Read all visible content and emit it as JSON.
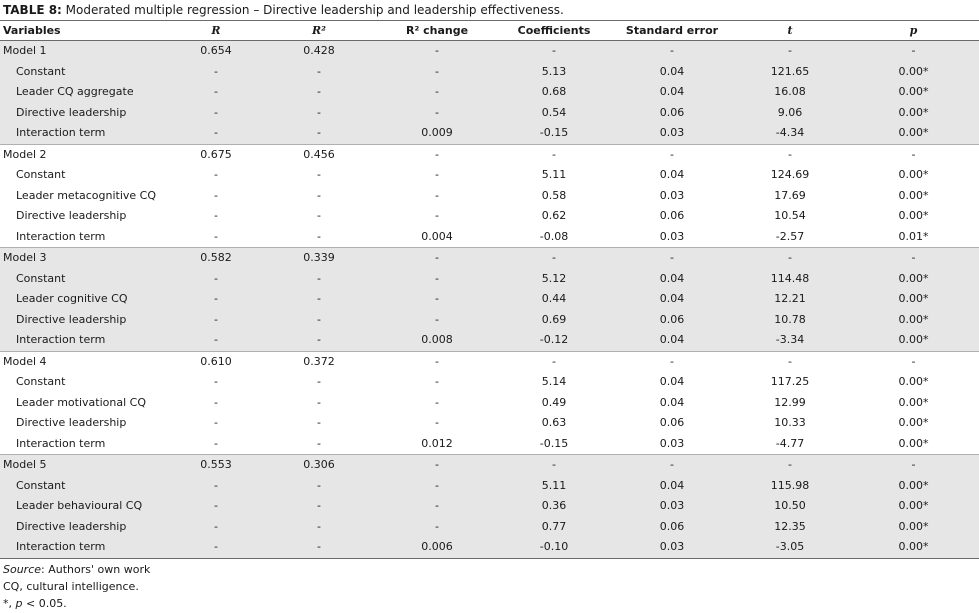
{
  "caption": {
    "label": "TABLE 8:",
    "text": " Moderated multiple regression – Directive leadership and leadership effectiveness."
  },
  "headers": [
    "Variables",
    "R",
    "R²",
    "R² change",
    "Coefficients",
    "Standard error",
    "t",
    "p"
  ],
  "models": [
    {
      "rows": [
        [
          "Model 1",
          "0.654",
          "0.428",
          "-",
          "-",
          "-",
          "-",
          "-"
        ],
        [
          "Constant",
          "-",
          "-",
          "-",
          "5.13",
          "0.04",
          "121.65",
          "0.00*"
        ],
        [
          "Leader CQ aggregate",
          "-",
          "-",
          "-",
          "0.68",
          "0.04",
          "16.08",
          "0.00*"
        ],
        [
          "Directive leadership",
          "-",
          "-",
          "-",
          "0.54",
          "0.06",
          "9.06",
          "0.00*"
        ],
        [
          "Interaction term",
          "-",
          "-",
          "0.009",
          "-0.15",
          "0.03",
          "-4.34",
          "0.00*"
        ]
      ]
    },
    {
      "rows": [
        [
          "Model 2",
          "0.675",
          "0.456",
          "-",
          "-",
          "-",
          "-",
          "-"
        ],
        [
          "Constant",
          "-",
          "-",
          "-",
          "5.11",
          "0.04",
          "124.69",
          "0.00*"
        ],
        [
          "Leader metacognitive CQ",
          "-",
          "-",
          "-",
          "0.58",
          "0.03",
          "17.69",
          "0.00*"
        ],
        [
          "Directive leadership",
          "-",
          "-",
          "-",
          "0.62",
          "0.06",
          "10.54",
          "0.00*"
        ],
        [
          "Interaction term",
          "-",
          "-",
          "0.004",
          "-0.08",
          "0.03",
          "-2.57",
          "0.01*"
        ]
      ]
    },
    {
      "rows": [
        [
          "Model 3",
          "0.582",
          "0.339",
          "-",
          "-",
          "-",
          "-",
          "-"
        ],
        [
          "Constant",
          "-",
          "-",
          "-",
          "5.12",
          "0.04",
          "114.48",
          "0.00*"
        ],
        [
          "Leader cognitive CQ",
          "-",
          "-",
          "-",
          "0.44",
          "0.04",
          "12.21",
          "0.00*"
        ],
        [
          "Directive leadership",
          "-",
          "-",
          "-",
          "0.69",
          "0.06",
          "10.78",
          "0.00*"
        ],
        [
          "Interaction term",
          "-",
          "-",
          "0.008",
          "-0.12",
          "0.04",
          "-3.34",
          "0.00*"
        ]
      ]
    },
    {
      "rows": [
        [
          "Model 4",
          "0.610",
          "0.372",
          "-",
          "-",
          "-",
          "-",
          "-"
        ],
        [
          "Constant",
          "-",
          "-",
          "-",
          "5.14",
          "0.04",
          "117.25",
          "0.00*"
        ],
        [
          "Leader motivational CQ",
          "-",
          "-",
          "-",
          "0.49",
          "0.04",
          "12.99",
          "0.00*"
        ],
        [
          "Directive leadership",
          "-",
          "-",
          "-",
          "0.63",
          "0.06",
          "10.33",
          "0.00*"
        ],
        [
          "Interaction term",
          "-",
          "-",
          "0.012",
          "-0.15",
          "0.03",
          "-4.77",
          "0.00*"
        ]
      ]
    },
    {
      "rows": [
        [
          "Model 5",
          "0.553",
          "0.306",
          "-",
          "-",
          "-",
          "-",
          "-"
        ],
        [
          "Constant",
          "-",
          "-",
          "-",
          "5.11",
          "0.04",
          "115.98",
          "0.00*"
        ],
        [
          "Leader behavioural CQ",
          "-",
          "-",
          "-",
          "0.36",
          "0.03",
          "10.50",
          "0.00*"
        ],
        [
          "Directive leadership",
          "-",
          "-",
          "-",
          "0.77",
          "0.06",
          "12.35",
          "0.00*"
        ],
        [
          "Interaction term",
          "-",
          "-",
          "0.006",
          "-0.10",
          "0.03",
          "-3.05",
          "0.00*"
        ]
      ]
    }
  ],
  "notes": {
    "source_label": "Source",
    "source_text": ": Authors' own work",
    "abbrev": "CQ, cultural intelligence.",
    "sig_prefix": "*, ",
    "sig_var": "p",
    "sig_text": " < 0.05."
  },
  "colors": {
    "shade": "#e6e6e6",
    "rule": "#6a6a6a"
  }
}
